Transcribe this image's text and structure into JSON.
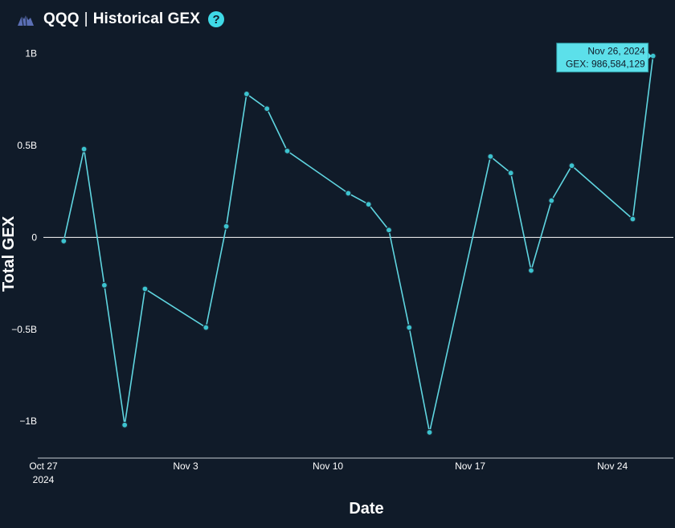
{
  "header": {
    "ticker": "QQQ",
    "title": "Historical GEX",
    "help_icon": "?"
  },
  "colors": {
    "background": "#101b29",
    "line": "#5fd5e0",
    "marker_fill": "#3cc3cf",
    "tooltip_bg": "#5ce0ea",
    "zero_line": "#ffffff"
  },
  "chart_data": {
    "type": "line",
    "xlabel": "Date",
    "ylabel": "Total GEX",
    "ylim": [
      -1.2,
      1.02
    ],
    "y_unit": "B",
    "xlim": [
      "2024-10-27",
      "2024-11-27"
    ],
    "x_ticks": [
      {
        "date": "2024-10-27",
        "label": "Oct 27",
        "sublabel": "2024"
      },
      {
        "date": "2024-11-03",
        "label": "Nov 3",
        "sublabel": ""
      },
      {
        "date": "2024-11-10",
        "label": "Nov 10",
        "sublabel": ""
      },
      {
        "date": "2024-11-17",
        "label": "Nov 17",
        "sublabel": ""
      },
      {
        "date": "2024-11-24",
        "label": "Nov 24",
        "sublabel": ""
      }
    ],
    "y_ticks": [
      {
        "value": 1,
        "label": "1B"
      },
      {
        "value": 0.5,
        "label": "0.5B"
      },
      {
        "value": 0,
        "label": "0"
      },
      {
        "value": -0.5,
        "label": "−0.5B"
      },
      {
        "value": -1,
        "label": "−1B"
      }
    ],
    "series": [
      {
        "x": [
          "2024-10-28",
          "2024-10-29",
          "2024-10-30",
          "2024-10-31",
          "2024-11-01",
          "2024-11-04",
          "2024-11-05",
          "2024-11-06",
          "2024-11-07",
          "2024-11-08",
          "2024-11-11",
          "2024-11-12",
          "2024-11-13",
          "2024-11-14",
          "2024-11-15",
          "2024-11-18",
          "2024-11-19",
          "2024-11-20",
          "2024-11-21",
          "2024-11-22",
          "2024-11-25",
          "2024-11-26"
        ],
        "y": [
          -0.02,
          0.48,
          -0.26,
          -1.02,
          -0.28,
          -0.49,
          0.06,
          0.78,
          0.7,
          0.47,
          0.24,
          0.18,
          0.04,
          -0.49,
          -1.06,
          0.44,
          0.35,
          -0.18,
          0.2,
          0.39,
          0.1,
          0.9866
        ]
      }
    ],
    "tooltip": {
      "date_label": "Nov 26, 2024",
      "value_label": "GEX: 986,584,129"
    }
  }
}
